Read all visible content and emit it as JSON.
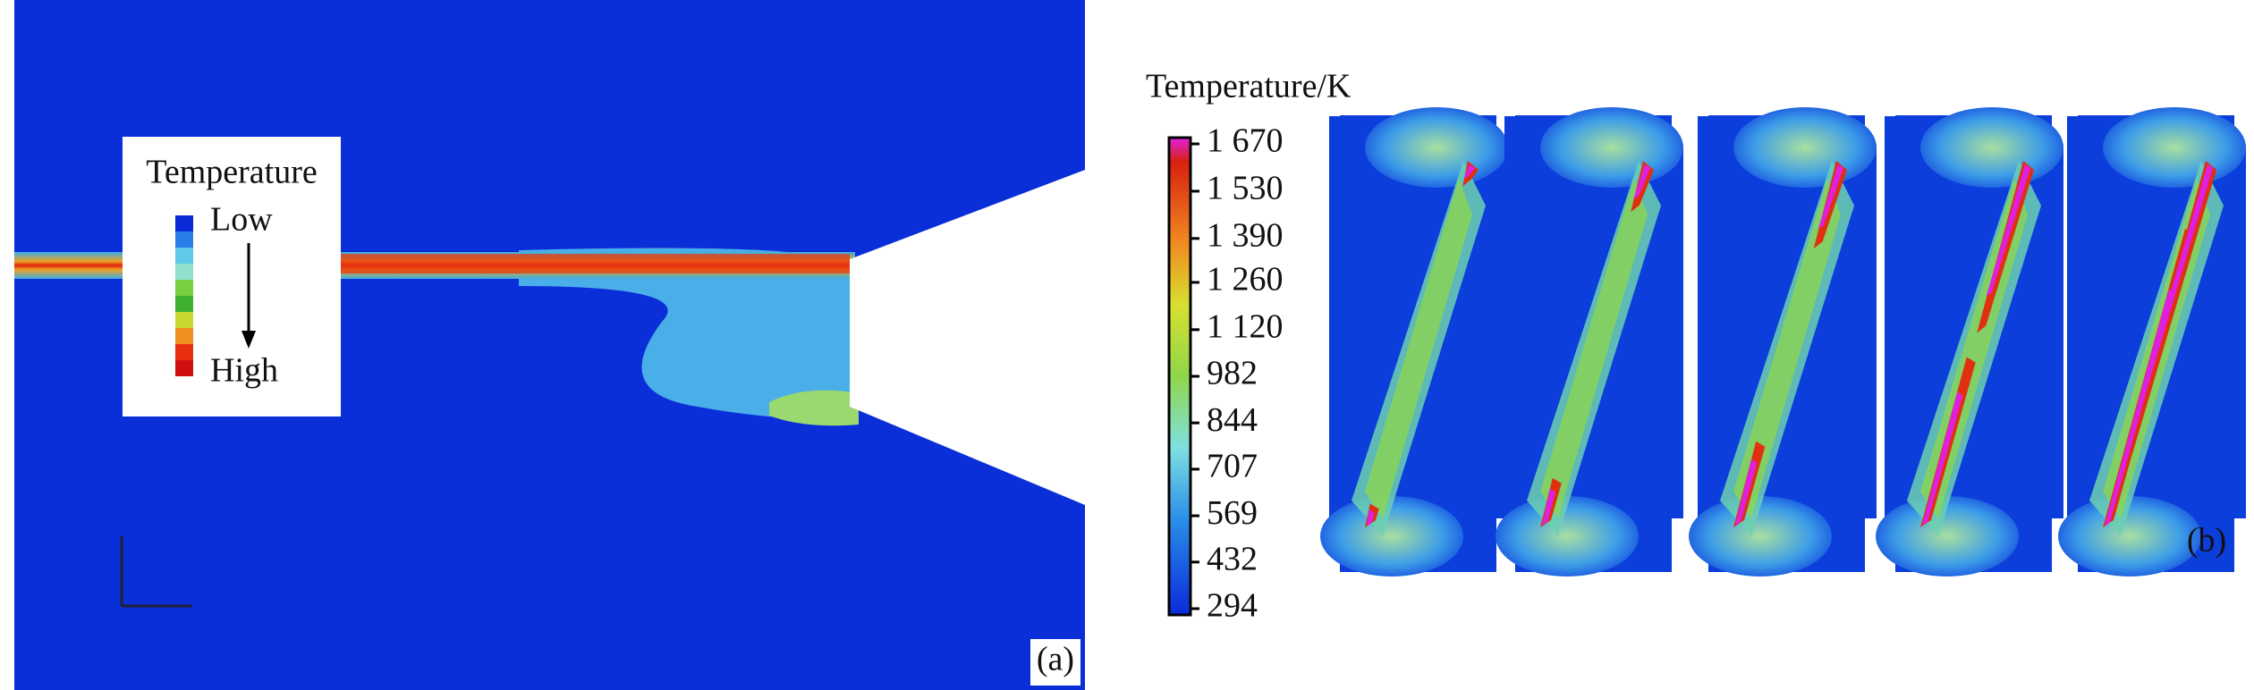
{
  "panel_a": {
    "legend": {
      "title": "Temperature",
      "low": "Low",
      "high": "High"
    },
    "label": "(a)"
  },
  "panel_b": {
    "colorbar": {
      "title": "Temperature/K",
      "ticks": [
        {
          "value": 1670,
          "label": "1 670"
        },
        {
          "value": 1530,
          "label": "1 530"
        },
        {
          "value": 1390,
          "label": "1 390"
        },
        {
          "value": 1260,
          "label": "1 260"
        },
        {
          "value": 1120,
          "label": "1 120"
        },
        982,
        844,
        707,
        569,
        432,
        294
      ]
    },
    "label": "(b)"
  }
}
